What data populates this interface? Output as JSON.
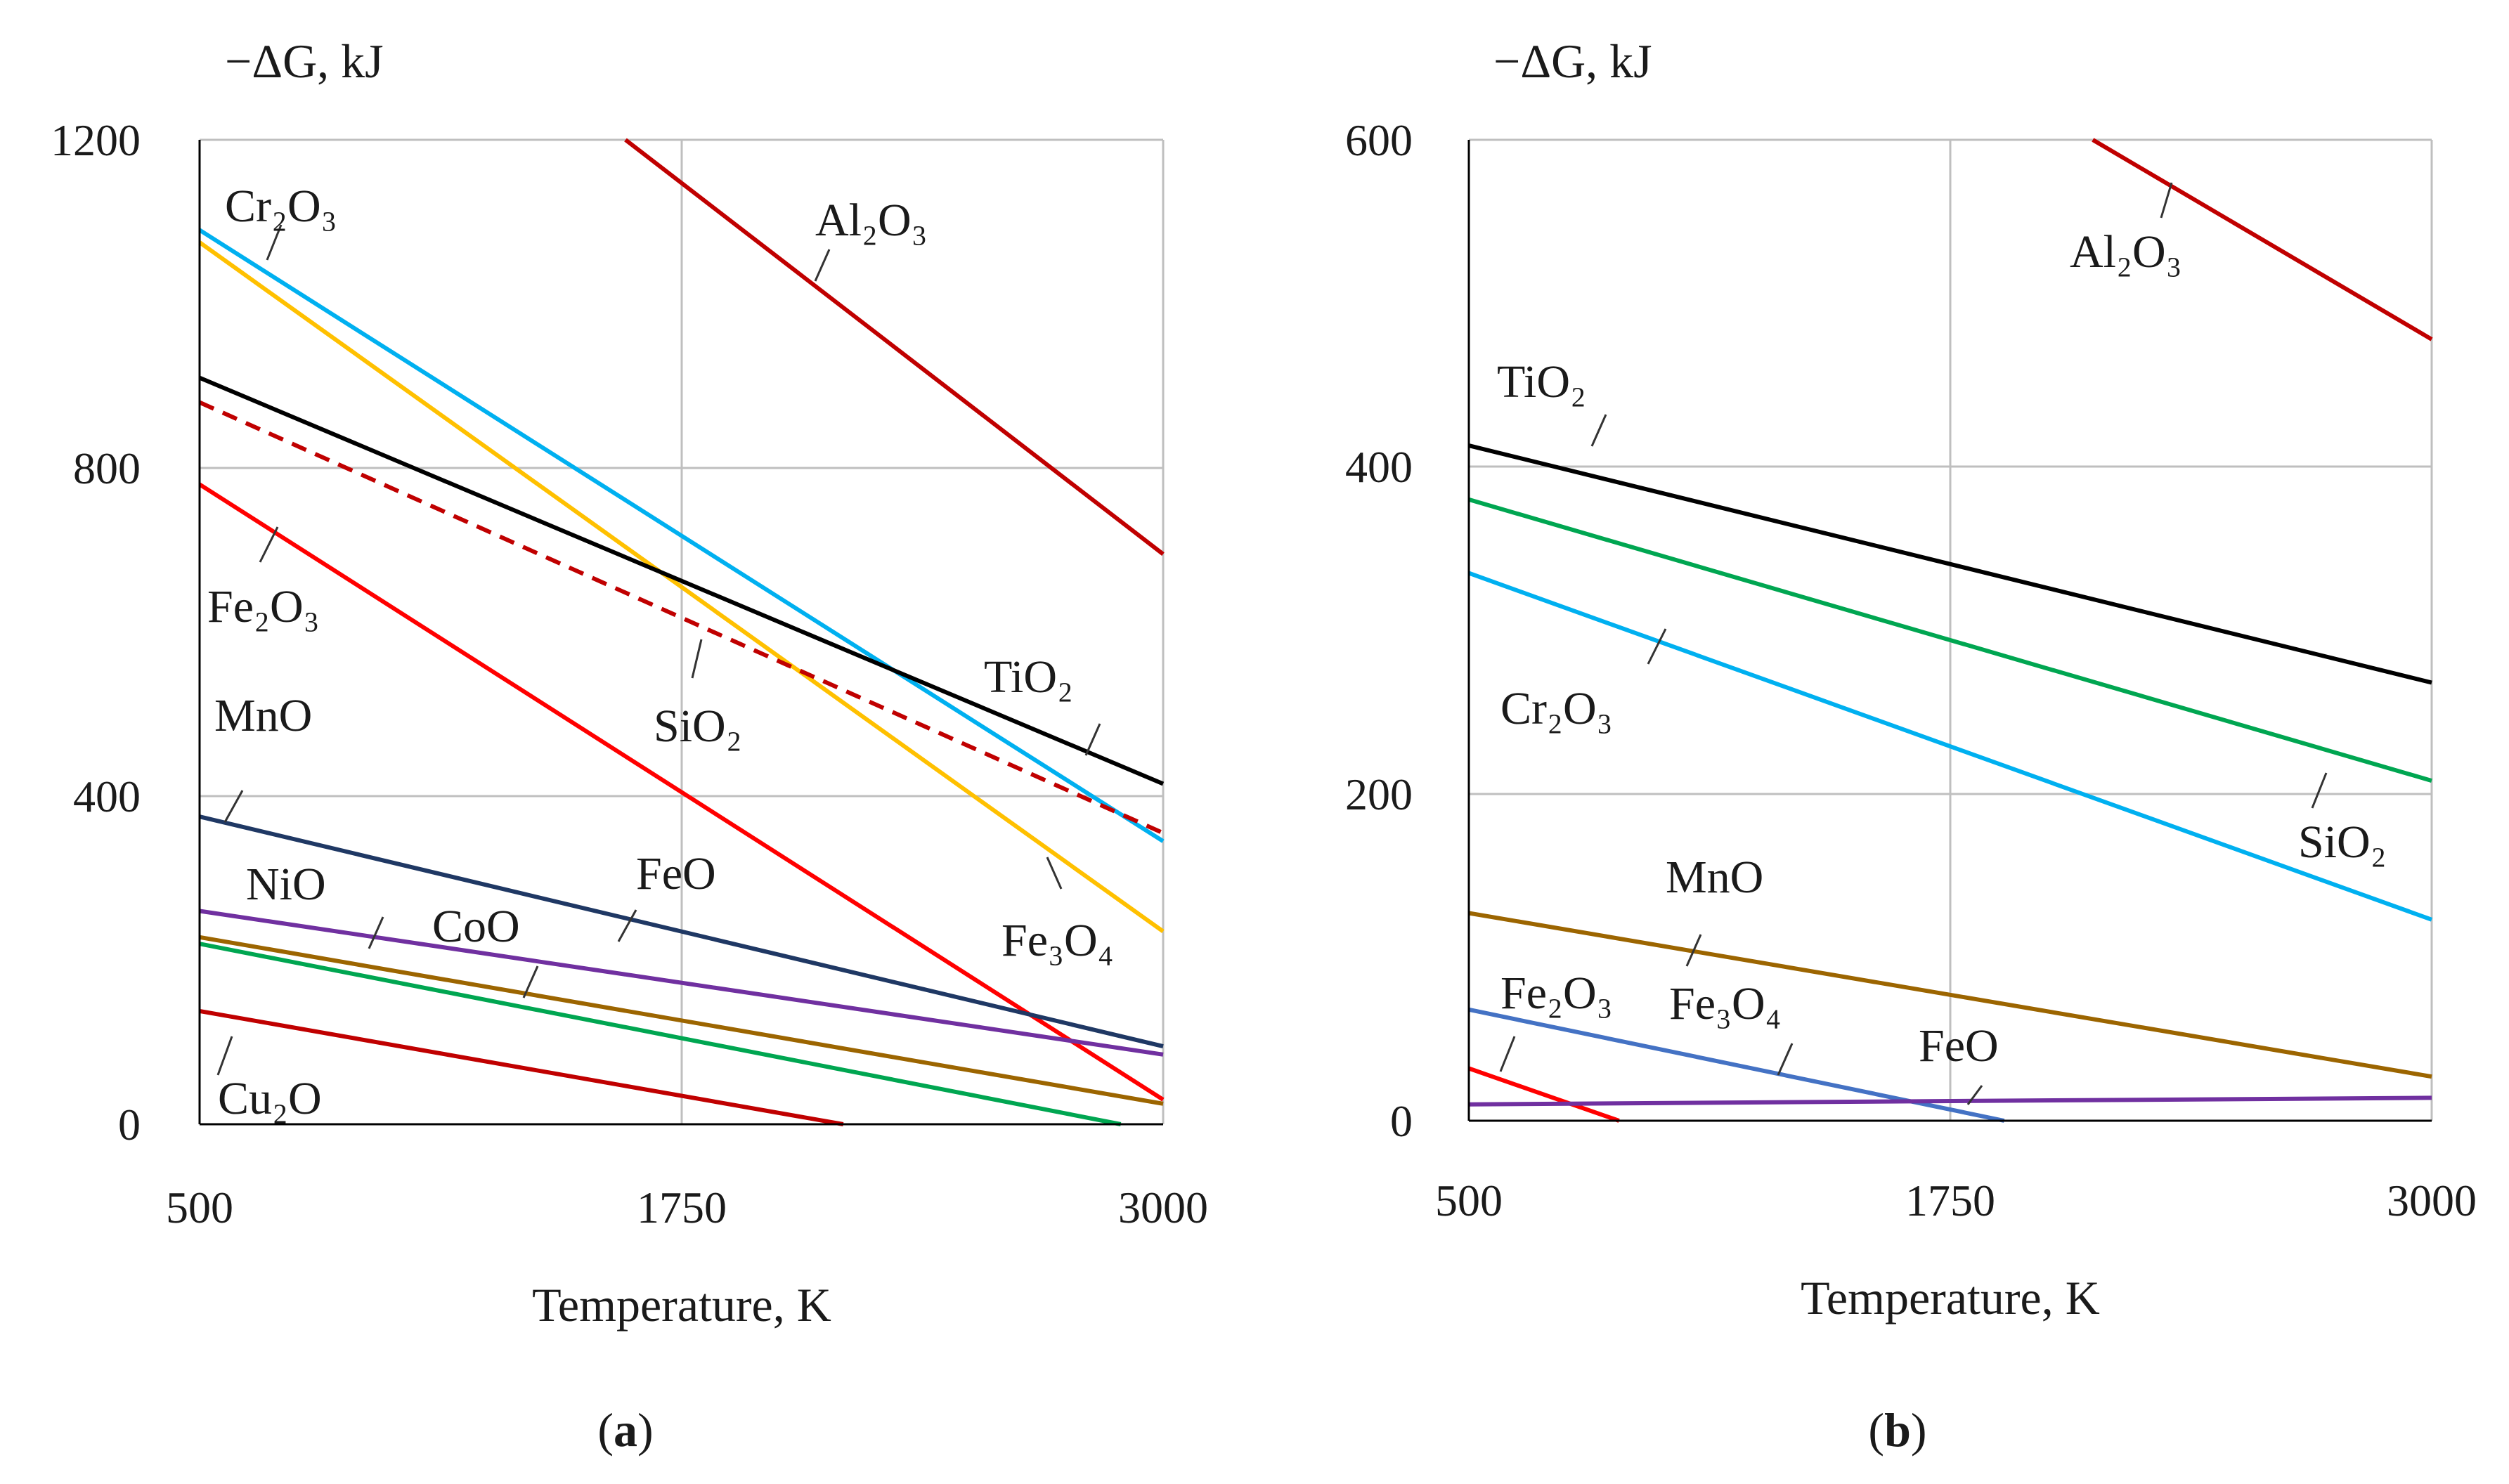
{
  "chart_data": [
    {
      "type": "line",
      "panel_label": "(a)",
      "panel_label_letter": "a",
      "ylabel": "−ΔG, kJ",
      "xlabel": "Temperature, K",
      "xlim": [
        500,
        3000
      ],
      "ylim": [
        0,
        1200
      ],
      "xticks": [
        "500",
        "1750",
        "3000"
      ],
      "yticks": [
        "0",
        "400",
        "800",
        "1200"
      ],
      "xtick_values": [
        500,
        1750,
        3000
      ],
      "ytick_values": [
        0,
        400,
        800,
        1200
      ],
      "grid": true,
      "series": [
        {
          "name": "Al₂O₃",
          "color": "#c00000",
          "dash": false,
          "x": [
            1605,
            3000
          ],
          "y": [
            1200,
            695
          ]
        },
        {
          "name": "Cr₂O₃",
          "color": "#00b0f0",
          "dash": false,
          "x": [
            500,
            3000
          ],
          "y": [
            1090,
            345
          ]
        },
        {
          "name": "Fe₃O₄",
          "color": "#ffc000",
          "dash": false,
          "x": [
            500,
            3000
          ],
          "y": [
            1075,
            235
          ]
        },
        {
          "name": "TiO₂",
          "color": "#000000",
          "dash": false,
          "x": [
            500,
            3000
          ],
          "y": [
            910,
            415
          ]
        },
        {
          "name": "SiO₂",
          "color": "#c00000",
          "dash": true,
          "x": [
            500,
            3000
          ],
          "y": [
            880,
            355
          ]
        },
        {
          "name": "Fe₂O₃",
          "color": "#ff0000",
          "dash": false,
          "x": [
            500,
            3000
          ],
          "y": [
            780,
            30
          ]
        },
        {
          "name": "MnO",
          "color": "#1f3864",
          "dash": false,
          "x": [
            500,
            3000
          ],
          "y": [
            375,
            95
          ]
        },
        {
          "name": "FeO",
          "color": "#7030a0",
          "dash": false,
          "x": [
            500,
            3000
          ],
          "y": [
            260,
            85
          ]
        },
        {
          "name": "CoO",
          "color": "#9c6500",
          "dash": false,
          "x": [
            500,
            3000
          ],
          "y": [
            228,
            25
          ]
        },
        {
          "name": "NiO",
          "color": "#00a651",
          "dash": false,
          "x": [
            500,
            2890
          ],
          "y": [
            220,
            0
          ]
        },
        {
          "name": "Cu₂O",
          "color": "#c00000",
          "dash": false,
          "x": [
            500,
            2170
          ],
          "y": [
            138,
            0
          ]
        }
      ]
    },
    {
      "type": "line",
      "panel_label": "(b)",
      "panel_label_letter": "b",
      "ylabel": "−ΔG, kJ",
      "xlabel": "Temperature, K",
      "xlim": [
        500,
        3000
      ],
      "ylim": [
        0,
        600
      ],
      "xticks": [
        "500",
        "1750",
        "3000"
      ],
      "yticks": [
        "0",
        "200",
        "400",
        "600"
      ],
      "xtick_values": [
        500,
        1750,
        3000
      ],
      "ytick_values": [
        0,
        200,
        400,
        600
      ],
      "grid": true,
      "series": [
        {
          "name": "Al₂O₃",
          "color": "#c00000",
          "dash": false,
          "x": [
            2120,
            3000
          ],
          "y": [
            600,
            478
          ]
        },
        {
          "name": "TiO₂",
          "color": "#000000",
          "dash": false,
          "x": [
            500,
            3000
          ],
          "y": [
            413,
            268
          ]
        },
        {
          "name": "SiO₂",
          "color": "#00a651",
          "dash": false,
          "x": [
            500,
            3000
          ],
          "y": [
            380,
            208
          ]
        },
        {
          "name": "Cr₂O₃",
          "color": "#00b0f0",
          "dash": false,
          "x": [
            500,
            3000
          ],
          "y": [
            335,
            123
          ]
        },
        {
          "name": "MnO",
          "color": "#9c6500",
          "dash": false,
          "x": [
            500,
            3000
          ],
          "y": [
            127,
            27
          ]
        },
        {
          "name": "Fe₂O₃",
          "color": "#ff0000",
          "dash": false,
          "x": [
            500,
            890
          ],
          "y": [
            32,
            0
          ]
        },
        {
          "name": "Fe₃O₄",
          "color": "#4472c4",
          "dash": false,
          "x": [
            500,
            1890
          ],
          "y": [
            68,
            0
          ]
        },
        {
          "name": "FeO",
          "color": "#7030a0",
          "dash": false,
          "x": [
            500,
            3000
          ],
          "y": [
            10,
            14
          ]
        }
      ]
    }
  ]
}
